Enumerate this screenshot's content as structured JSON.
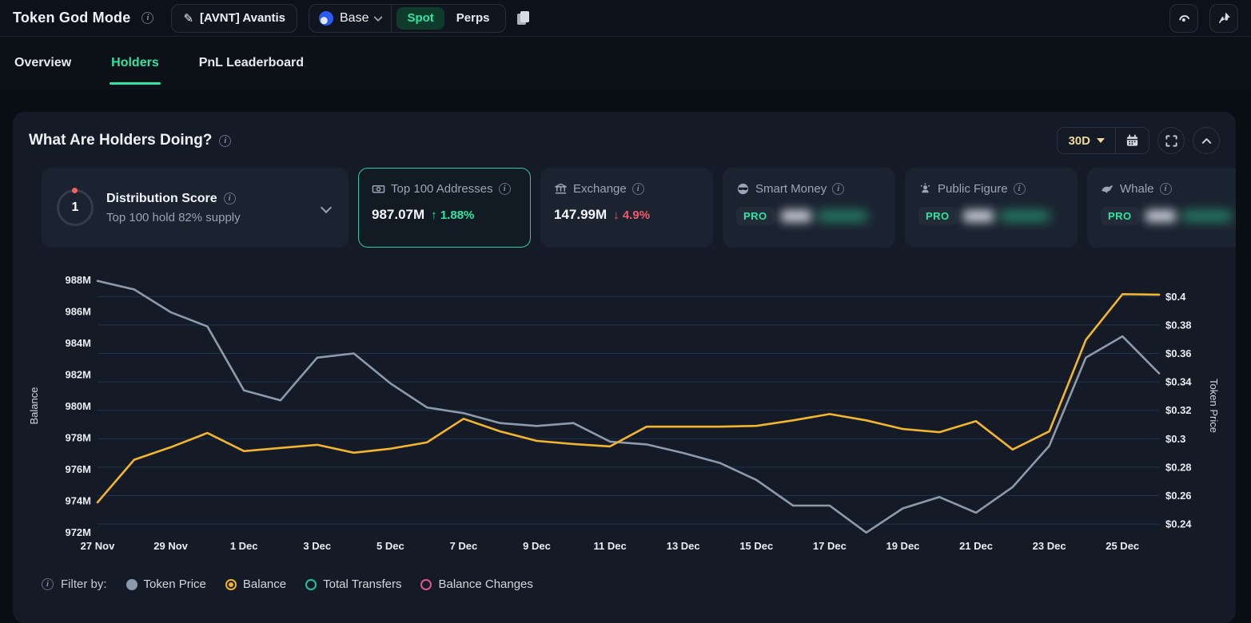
{
  "header": {
    "app_title": "Token God Mode",
    "token_label": "[AVNT] Avantis",
    "chain_label": "Base",
    "market_options": {
      "spot": "Spot",
      "perps": "Perps"
    },
    "market_active": "Spot"
  },
  "tabs": [
    {
      "label": "Overview",
      "active": false
    },
    {
      "label": "Holders",
      "active": true
    },
    {
      "label": "PnL Leaderboard",
      "active": false
    }
  ],
  "panel": {
    "title": "What Are Holders Doing?",
    "range": "30D",
    "cards": {
      "distribution": {
        "score": "1",
        "title": "Distribution Score",
        "subtitle": "Top 100 hold 82% supply"
      },
      "top100": {
        "title": "Top 100 Addresses",
        "value": "987.07M",
        "arrow": "↑",
        "change": "1.88%",
        "direction": "up",
        "selected": true
      },
      "exchange": {
        "title": "Exchange",
        "value": "147.99M",
        "arrow": "↓",
        "change": "4.9%",
        "direction": "down"
      },
      "smart_money": {
        "title": "Smart Money",
        "badge": "PRO",
        "locked": true
      },
      "public_figure": {
        "title": "Public Figure",
        "badge": "PRO",
        "locked": true
      },
      "whale": {
        "title": "Whale",
        "badge": "PRO",
        "locked": true
      }
    },
    "filter": {
      "label": "Filter by:",
      "options": [
        {
          "label": "Token Price",
          "color": "#8b99ab",
          "style": "filled"
        },
        {
          "label": "Balance",
          "color": "#f0b42c",
          "style": "selected"
        },
        {
          "label": "Total Transfers",
          "color": "#27bfa0",
          "style": "ring"
        },
        {
          "label": "Balance Changes",
          "color": "#e0568f",
          "style": "ring"
        }
      ]
    }
  },
  "colors": {
    "accent_green": "#2ee6a2",
    "red": "#f05c6e",
    "balance_line": "#f2b52d",
    "price_line": "#8d9aab",
    "grid": "#1d3350"
  },
  "chart_data": {
    "type": "line",
    "x": [
      "27 Nov",
      "28 Nov",
      "29 Nov",
      "30 Nov",
      "1 Dec",
      "2 Dec",
      "3 Dec",
      "4 Dec",
      "5 Dec",
      "6 Dec",
      "7 Dec",
      "8 Dec",
      "9 Dec",
      "10 Dec",
      "11 Dec",
      "12 Dec",
      "13 Dec",
      "14 Dec",
      "15 Dec",
      "16 Dec",
      "17 Dec",
      "18 Dec",
      "19 Dec",
      "20 Dec",
      "21 Dec",
      "22 Dec",
      "23 Dec",
      "24 Dec",
      "25 Dec",
      "26 Dec"
    ],
    "x_tick_every": 2,
    "series": [
      {
        "name": "Balance",
        "axis": "left",
        "color": "#f2b52d",
        "values": [
          973.9,
          976.6,
          977.4,
          978.3,
          977.15,
          977.35,
          977.55,
          977.05,
          977.3,
          977.7,
          979.2,
          978.4,
          977.8,
          977.6,
          977.45,
          978.7,
          978.7,
          978.7,
          978.75,
          979.1,
          979.5,
          979.1,
          978.55,
          978.35,
          979.05,
          977.25,
          978.4,
          984.2,
          987.1,
          987.07
        ]
      },
      {
        "name": "Token Price",
        "axis": "right",
        "color": "#8d9aab",
        "values": [
          0.411,
          0.405,
          0.389,
          0.379,
          0.334,
          0.327,
          0.357,
          0.36,
          0.339,
          0.322,
          0.318,
          0.311,
          0.309,
          0.311,
          0.298,
          0.296,
          0.29,
          0.283,
          0.271,
          0.253,
          0.253,
          0.234,
          0.251,
          0.259,
          0.248,
          0.266,
          0.295,
          0.357,
          0.372,
          0.346
        ]
      }
    ],
    "left_axis": {
      "title": "Balance",
      "max": 988,
      "min": 972,
      "tick_step": 2,
      "ticks": [
        "988M",
        "986M",
        "984M",
        "982M",
        "980M",
        "978M",
        "976M",
        "974M",
        "972M"
      ]
    },
    "right_axis": {
      "title": "Token Price",
      "max": 0.4,
      "min": 0.24,
      "tick_step": 0.02,
      "ticks": [
        "$0.4",
        "$0.38",
        "$0.36",
        "$0.34",
        "$0.32",
        "$0.3",
        "$0.28",
        "$0.26",
        "$0.24"
      ]
    },
    "grid": "horizontal",
    "legend_position": "bottom"
  }
}
